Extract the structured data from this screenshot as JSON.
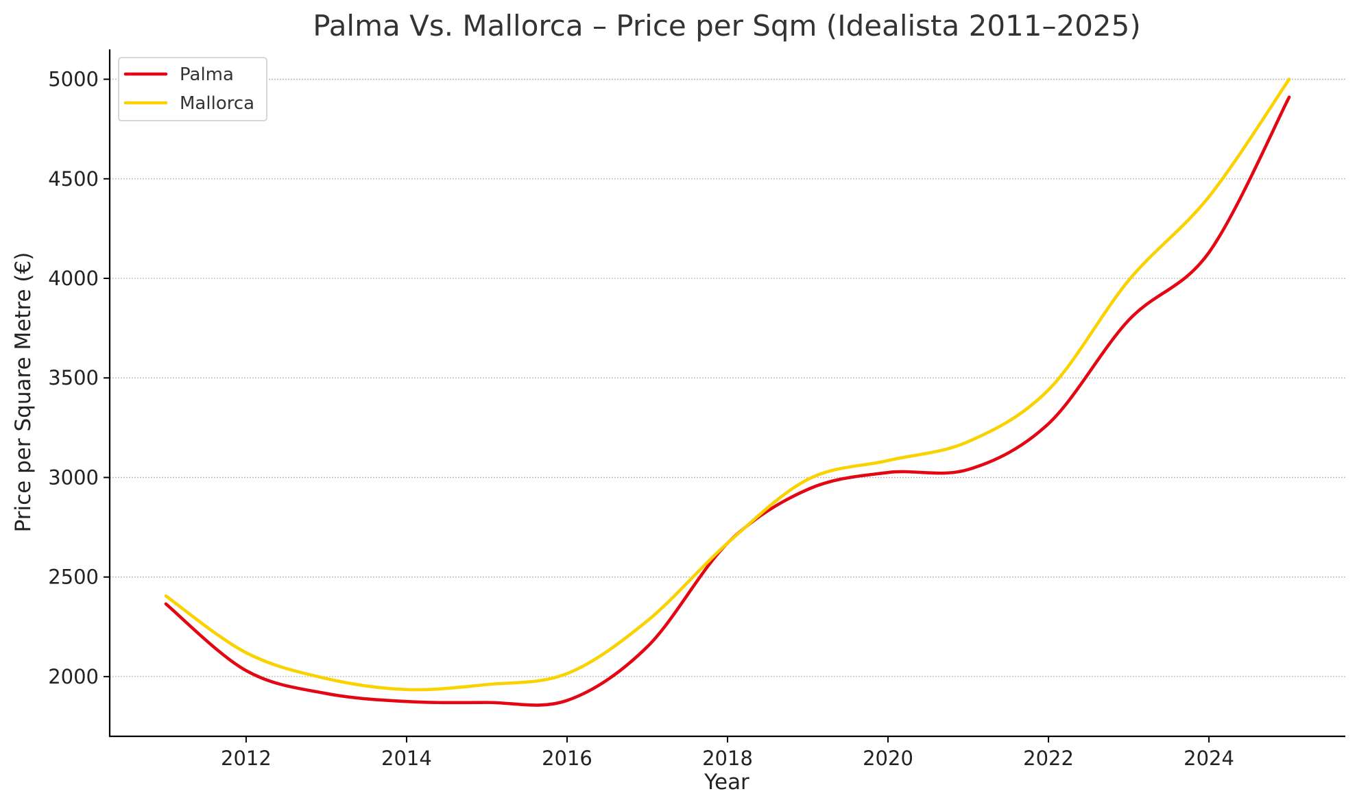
{
  "chart_data": {
    "type": "line",
    "title": "Palma Vs. Mallorca – Price per Sqm (Idealista 2011–2025)",
    "xlabel": "Year",
    "ylabel": "Price per Square Metre (€)",
    "x": [
      2011,
      2012,
      2013,
      2014,
      2015,
      2016,
      2017,
      2018,
      2019,
      2020,
      2021,
      2022,
      2023,
      2024,
      2025
    ],
    "series": [
      {
        "name": "Palma",
        "color": "#e30613",
        "values": [
          2365,
          2030,
          1915,
          1875,
          1870,
          1880,
          2150,
          2670,
          2940,
          3025,
          3040,
          3270,
          3790,
          4130,
          4910
        ]
      },
      {
        "name": "Mallorca",
        "color": "#f9d200",
        "values": [
          2405,
          2120,
          1990,
          1935,
          1960,
          2015,
          2280,
          2670,
          2990,
          3085,
          3180,
          3440,
          3990,
          4410,
          5000
        ]
      }
    ],
    "xlim": [
      2010.3,
      2025.7
    ],
    "ylim": [
      1700,
      5150
    ],
    "xticks": [
      2012,
      2014,
      2016,
      2018,
      2020,
      2022,
      2024
    ],
    "yticks": [
      2000,
      2500,
      3000,
      3500,
      4000,
      4500,
      5000
    ],
    "grid": "horizontal dotted",
    "legend_position": "top-left"
  }
}
